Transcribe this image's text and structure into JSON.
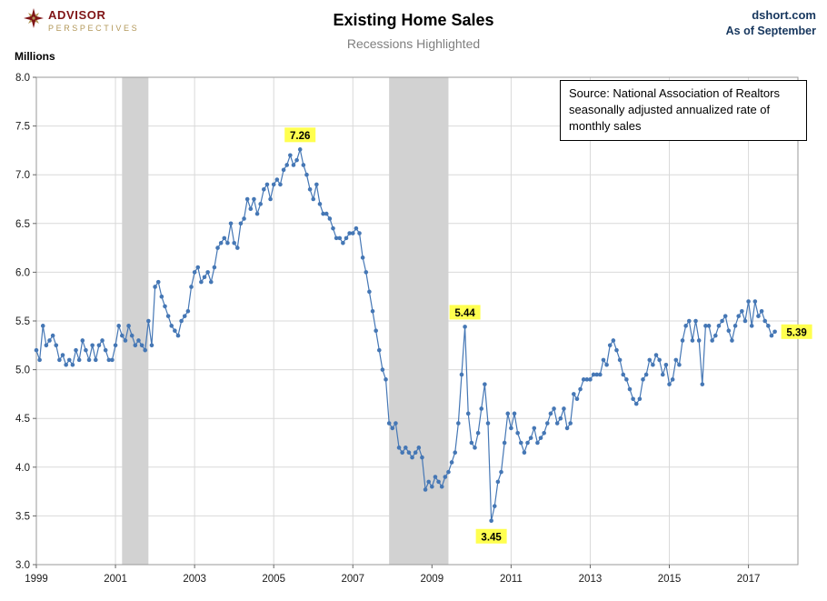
{
  "header": {
    "logo_line1": "ADVISOR",
    "logo_line2": "PERSPECTIVES",
    "title": "Existing Home Sales",
    "subtitle": "Recessions Highlighted",
    "site": "dshort.com",
    "as_of": "As of September"
  },
  "source_note": "Source: National Association of Realtors seasonally adjusted annualized rate of monthly sales",
  "colors": {
    "line": "#4577b5",
    "recession_band": "#d2d2d2",
    "annotation_highlight": "#ffff4f",
    "grid": "#d9d9d9",
    "plot_border": "#9a9a9a",
    "brand_maroon": "#7f1416",
    "brand_gold": "#b3985a",
    "header_blue": "#17375e",
    "subtitle_gray": "#7f7f7f"
  },
  "chart_data": {
    "type": "line",
    "title": "Existing Home Sales",
    "subtitle": "Recessions Highlighted",
    "ylabel": "Millions",
    "ylim": [
      3.0,
      8.0
    ],
    "y_tick_step": 0.5,
    "x_start": "1999-01",
    "x_end": "2017-09",
    "x_tick_labels": [
      "1999",
      "2001",
      "2003",
      "2005",
      "2007",
      "2009",
      "2011",
      "2013",
      "2015",
      "2017"
    ],
    "grid": true,
    "legend": "none",
    "recessions": [
      {
        "start": "2001-03",
        "end": "2001-11"
      },
      {
        "start": "2007-12",
        "end": "2009-06"
      }
    ],
    "series": [
      {
        "name": "Existing Home Sales (millions, seasonally adjusted annualized rate)",
        "start": "1999-01",
        "frequency": "monthly",
        "monthly_values": [
          5.2,
          5.1,
          5.45,
          5.25,
          5.3,
          5.35,
          5.25,
          5.1,
          5.15,
          5.05,
          5.1,
          5.05,
          5.2,
          5.1,
          5.3,
          5.2,
          5.1,
          5.25,
          5.1,
          5.25,
          5.3,
          5.2,
          5.1,
          5.1,
          5.25,
          5.45,
          5.35,
          5.3,
          5.45,
          5.35,
          5.25,
          5.3,
          5.25,
          5.2,
          5.5,
          5.25,
          5.85,
          5.9,
          5.75,
          5.65,
          5.55,
          5.45,
          5.4,
          5.35,
          5.5,
          5.55,
          5.6,
          5.85,
          6.0,
          6.05,
          5.9,
          5.95,
          6.0,
          5.9,
          6.05,
          6.25,
          6.3,
          6.35,
          6.3,
          6.5,
          6.3,
          6.25,
          6.5,
          6.55,
          6.75,
          6.65,
          6.75,
          6.6,
          6.7,
          6.85,
          6.9,
          6.75,
          6.9,
          6.95,
          6.9,
          7.05,
          7.1,
          7.2,
          7.1,
          7.15,
          7.26,
          7.1,
          7.0,
          6.85,
          6.75,
          6.9,
          6.7,
          6.6,
          6.6,
          6.55,
          6.45,
          6.35,
          6.35,
          6.3,
          6.35,
          6.4,
          6.4,
          6.45,
          6.4,
          6.15,
          6.0,
          5.8,
          5.6,
          5.4,
          5.2,
          5.0,
          4.9,
          4.45,
          4.4,
          4.45,
          4.2,
          4.15,
          4.2,
          4.15,
          4.1,
          4.15,
          4.2,
          4.1,
          3.77,
          3.85,
          3.8,
          3.9,
          3.85,
          3.8,
          3.9,
          3.95,
          4.05,
          4.15,
          4.45,
          4.95,
          5.44,
          4.55,
          4.25,
          4.2,
          4.35,
          4.6,
          4.85,
          4.45,
          3.45,
          3.6,
          3.85,
          3.95,
          4.25,
          4.55,
          4.4,
          4.55,
          4.35,
          4.25,
          4.15,
          4.25,
          4.3,
          4.4,
          4.25,
          4.3,
          4.35,
          4.45,
          4.55,
          4.6,
          4.45,
          4.5,
          4.6,
          4.4,
          4.45,
          4.75,
          4.7,
          4.8,
          4.9,
          4.9,
          4.9,
          4.95,
          4.95,
          4.95,
          5.1,
          5.05,
          5.25,
          5.3,
          5.2,
          5.1,
          4.95,
          4.9,
          4.8,
          4.7,
          4.65,
          4.7,
          4.9,
          4.95,
          5.1,
          5.05,
          5.15,
          5.1,
          4.95,
          5.05,
          4.85,
          4.9,
          5.1,
          5.05,
          5.3,
          5.45,
          5.5,
          5.3,
          5.5,
          5.3,
          4.85,
          5.45,
          5.45,
          5.3,
          5.35,
          5.45,
          5.5,
          5.55,
          5.4,
          5.3,
          5.45,
          5.55,
          5.6,
          5.5,
          5.7,
          5.45,
          5.7,
          5.55,
          5.6,
          5.5,
          5.45,
          5.35,
          5.39
        ]
      }
    ],
    "annotations": [
      {
        "label": "7.26",
        "month": "2005-09",
        "value": 7.26,
        "placement": "above"
      },
      {
        "label": "5.44",
        "month": "2009-11",
        "value": 5.44,
        "placement": "above"
      },
      {
        "label": "3.45",
        "month": "2010-07",
        "value": 3.45,
        "placement": "below"
      },
      {
        "label": "5.39",
        "month": "2017-09",
        "value": 5.39,
        "placement": "right"
      }
    ]
  }
}
